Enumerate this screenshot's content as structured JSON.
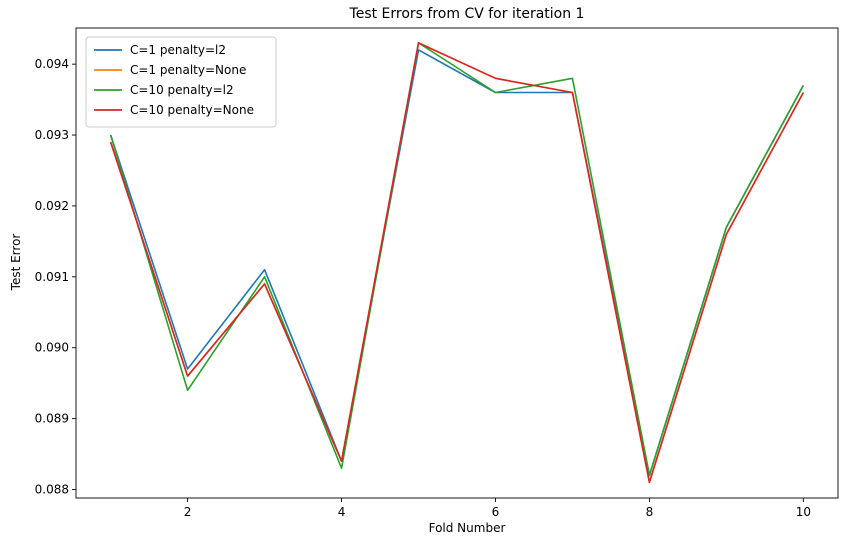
{
  "chart_data": {
    "type": "line",
    "title": "Test Errors from CV for iteration 1",
    "xlabel": "Fold Number",
    "ylabel": "Test Error",
    "x": [
      1,
      2,
      3,
      4,
      5,
      6,
      7,
      8,
      9,
      10
    ],
    "xlim": [
      0.55,
      10.45
    ],
    "ylim": [
      0.08788,
      0.09451
    ],
    "xticks": [
      2,
      4,
      6,
      8,
      10
    ],
    "xtick_labels": [
      "2",
      "4",
      "6",
      "8",
      "10"
    ],
    "yticks": [
      0.088,
      0.089,
      0.09,
      0.091,
      0.092,
      0.093,
      0.094
    ],
    "ytick_labels": [
      "0.088",
      "0.089",
      "0.090",
      "0.091",
      "0.092",
      "0.093",
      "0.094"
    ],
    "grid": false,
    "legend_position": "top-left",
    "series": [
      {
        "name": "C=1 penalty=l2",
        "color": "#1f77b4",
        "values": [
          0.093,
          0.0897,
          0.0911,
          0.0884,
          0.0942,
          0.0936,
          0.0936,
          0.0882,
          0.0917,
          0.0937
        ]
      },
      {
        "name": "C=1 penalty=None",
        "color": "#ff7f0e",
        "values": [
          0.0929,
          0.0896,
          0.0909,
          0.0884,
          0.0943,
          0.0938,
          0.0936,
          0.0881,
          0.0916,
          0.0936
        ]
      },
      {
        "name": "C=10 penalty=l2",
        "color": "#2ca02c",
        "values": [
          0.093,
          0.0894,
          0.091,
          0.0883,
          0.0943,
          0.0936,
          0.0938,
          0.0882,
          0.0917,
          0.0937
        ]
      },
      {
        "name": "C=10 penalty=None",
        "color": "#d62728",
        "values": [
          0.0929,
          0.0896,
          0.0909,
          0.0884,
          0.0943,
          0.0938,
          0.0936,
          0.0881,
          0.0916,
          0.0936
        ]
      }
    ]
  }
}
